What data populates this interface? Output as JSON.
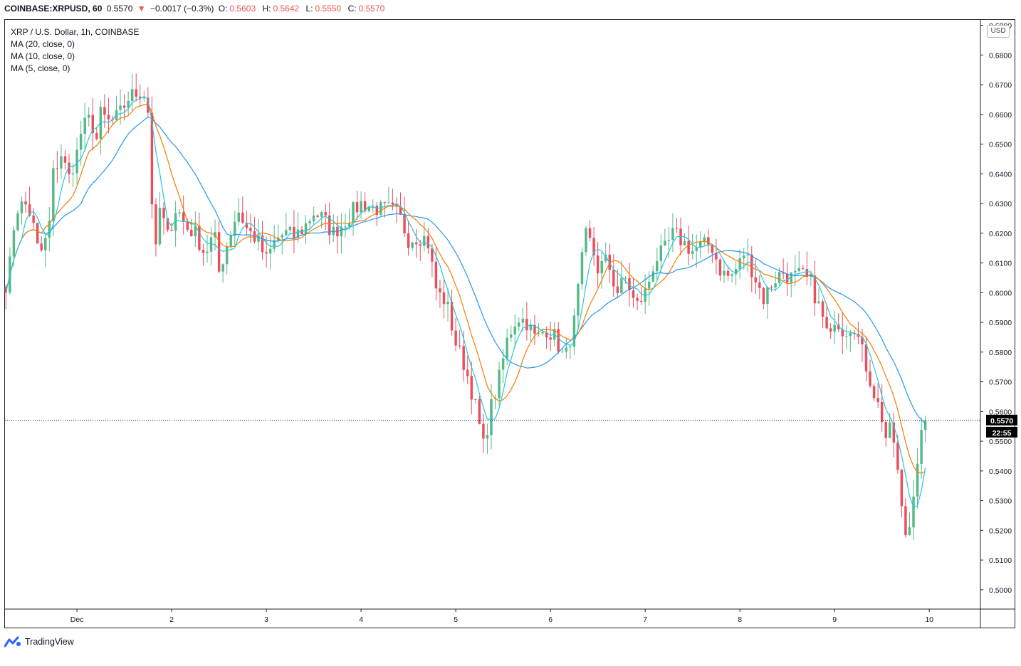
{
  "header": {
    "symbol": "COINBASE:XRPUSD, 60",
    "last": "0.5570",
    "arrow": "▼",
    "change": "−0.0017 (−0.3%)",
    "o_label": "O:",
    "o_value": "0.5603",
    "h_label": "H:",
    "h_value": "0.5642",
    "l_label": "L:",
    "l_value": "0.5550",
    "c_label": "C:",
    "c_value": "0.5570"
  },
  "legend": {
    "title": "XRP / U.S. Dollar, 1h, COINBASE",
    "ma20": "MA (20, close, 0)",
    "ma10": "MA (10, close, 0)",
    "ma5": "MA (5, close, 0)"
  },
  "currency_button": "USD",
  "footer": {
    "brand": "TradingView"
  },
  "colors": {
    "up": "#26a69a",
    "candle_up": "#53b987",
    "candle_down": "#eb4d5c",
    "ma20": "#2196f3",
    "ma10": "#f57c00",
    "ma5": "#26c6da",
    "price_line": "#131722"
  },
  "chart_data": {
    "type": "candlestick",
    "y_axis": {
      "ticks": [
        "0.6900",
        "0.6800",
        "0.6700",
        "0.6600",
        "0.6500",
        "0.6400",
        "0.6300",
        "0.6200",
        "0.6100",
        "0.6000",
        "0.5900",
        "0.5800",
        "0.5700",
        "0.5600",
        "0.5500",
        "0.5400",
        "0.5300",
        "0.5200",
        "0.5100",
        "0.5000"
      ],
      "range": [
        0.4935,
        0.6918
      ]
    },
    "x_axis": {
      "ticks": [
        {
          "label": "Dec",
          "day": 1
        },
        {
          "label": "2",
          "day": 2
        },
        {
          "label": "3",
          "day": 3
        },
        {
          "label": "4",
          "day": 4
        },
        {
          "label": "5",
          "day": 5
        },
        {
          "label": "6",
          "day": 6
        },
        {
          "label": "7",
          "day": 7
        },
        {
          "label": "8",
          "day": 8
        },
        {
          "label": "9",
          "day": 9
        },
        {
          "label": "10",
          "day": 10
        }
      ],
      "range_days": [
        0.24,
        10.54
      ]
    },
    "last_price": {
      "value": 0.557,
      "label": "0.5570",
      "countdown": "22:55"
    },
    "anchors": [
      [
        0.25,
        0.603
      ],
      [
        0.3,
        0.611
      ],
      [
        0.35,
        0.628
      ],
      [
        0.45,
        0.63
      ],
      [
        0.5,
        0.627
      ],
      [
        0.55,
        0.621
      ],
      [
        0.6,
        0.612
      ],
      [
        0.7,
        0.62
      ],
      [
        0.75,
        0.64
      ],
      [
        0.85,
        0.648
      ],
      [
        0.9,
        0.637
      ],
      [
        1.0,
        0.647
      ],
      [
        1.05,
        0.655
      ],
      [
        1.15,
        0.659
      ],
      [
        1.2,
        0.65
      ],
      [
        1.25,
        0.66
      ],
      [
        1.35,
        0.657
      ],
      [
        1.45,
        0.66
      ],
      [
        1.55,
        0.666
      ],
      [
        1.7,
        0.668
      ],
      [
        1.75,
        0.661
      ],
      [
        1.78,
        0.64
      ],
      [
        1.82,
        0.609
      ],
      [
        1.88,
        0.63
      ],
      [
        1.95,
        0.618
      ],
      [
        2.05,
        0.629
      ],
      [
        2.15,
        0.622
      ],
      [
        2.25,
        0.62
      ],
      [
        2.35,
        0.613
      ],
      [
        2.45,
        0.62
      ],
      [
        2.5,
        0.607
      ],
      [
        2.6,
        0.618
      ],
      [
        2.7,
        0.628
      ],
      [
        2.8,
        0.621
      ],
      [
        2.9,
        0.618
      ],
      [
        3.0,
        0.611
      ],
      [
        3.1,
        0.618
      ],
      [
        3.2,
        0.62
      ],
      [
        3.3,
        0.619
      ],
      [
        3.4,
        0.622
      ],
      [
        3.5,
        0.627
      ],
      [
        3.6,
        0.625
      ],
      [
        3.7,
        0.62
      ],
      [
        3.8,
        0.623
      ],
      [
        3.9,
        0.627
      ],
      [
        4.0,
        0.63
      ],
      [
        4.1,
        0.629
      ],
      [
        4.2,
        0.628
      ],
      [
        4.3,
        0.628
      ],
      [
        4.4,
        0.626
      ],
      [
        4.5,
        0.618
      ],
      [
        4.6,
        0.619
      ],
      [
        4.7,
        0.618
      ],
      [
        4.8,
        0.6
      ],
      [
        4.9,
        0.597
      ],
      [
        5.0,
        0.583
      ],
      [
        5.1,
        0.575
      ],
      [
        5.2,
        0.563
      ],
      [
        5.3,
        0.547
      ],
      [
        5.35,
        0.559
      ],
      [
        5.45,
        0.57
      ],
      [
        5.55,
        0.585
      ],
      [
        5.65,
        0.592
      ],
      [
        5.75,
        0.59
      ],
      [
        5.85,
        0.584
      ],
      [
        5.95,
        0.588
      ],
      [
        6.05,
        0.585
      ],
      [
        6.15,
        0.577
      ],
      [
        6.25,
        0.59
      ],
      [
        6.32,
        0.608
      ],
      [
        6.38,
        0.62
      ],
      [
        6.45,
        0.614
      ],
      [
        6.5,
        0.608
      ],
      [
        6.6,
        0.611
      ],
      [
        6.7,
        0.6
      ],
      [
        6.8,
        0.605
      ],
      [
        6.9,
        0.595
      ],
      [
        7.0,
        0.6
      ],
      [
        7.05,
        0.605
      ],
      [
        7.1,
        0.611
      ],
      [
        7.2,
        0.614
      ],
      [
        7.3,
        0.62
      ],
      [
        7.4,
        0.617
      ],
      [
        7.5,
        0.614
      ],
      [
        7.6,
        0.616
      ],
      [
        7.7,
        0.616
      ],
      [
        7.8,
        0.607
      ],
      [
        7.9,
        0.605
      ],
      [
        8.0,
        0.61
      ],
      [
        8.05,
        0.614
      ],
      [
        8.15,
        0.606
      ],
      [
        8.25,
        0.598
      ],
      [
        8.35,
        0.604
      ],
      [
        8.45,
        0.607
      ],
      [
        8.55,
        0.605
      ],
      [
        8.65,
        0.606
      ],
      [
        8.75,
        0.603
      ],
      [
        8.85,
        0.594
      ],
      [
        8.95,
        0.583
      ],
      [
        9.0,
        0.592
      ],
      [
        9.1,
        0.587
      ],
      [
        9.2,
        0.59
      ],
      [
        9.3,
        0.579
      ],
      [
        9.4,
        0.568
      ],
      [
        9.5,
        0.558
      ],
      [
        9.55,
        0.55
      ],
      [
        9.6,
        0.555
      ],
      [
        9.65,
        0.545
      ],
      [
        9.7,
        0.528
      ],
      [
        9.75,
        0.519
      ],
      [
        9.8,
        0.522
      ],
      [
        9.85,
        0.54
      ],
      [
        9.9,
        0.548
      ],
      [
        9.95,
        0.56
      ],
      [
        9.97,
        0.557
      ]
    ]
  }
}
